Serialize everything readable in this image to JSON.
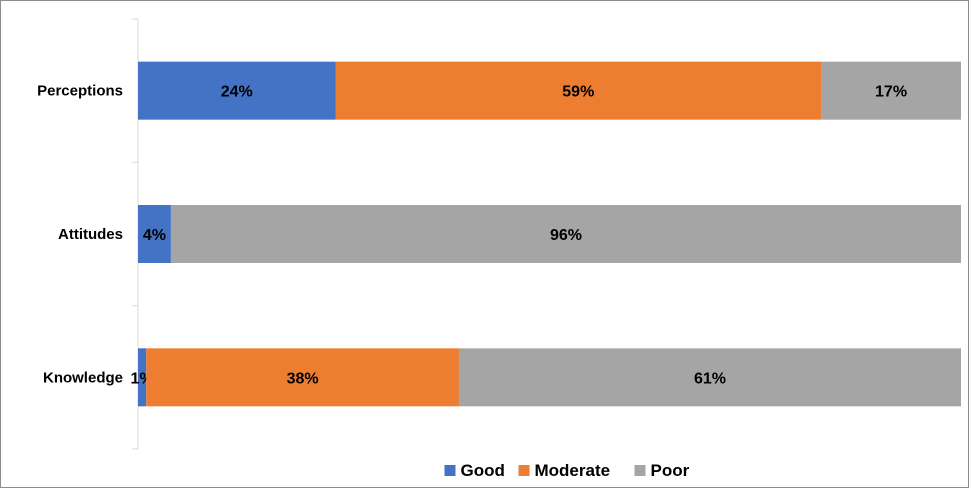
{
  "chart_data": {
    "type": "bar",
    "orientation": "horizontal",
    "stacked": true,
    "percent": true,
    "title": "",
    "xlabel": "",
    "ylabel": "",
    "categories": [
      "Perceptions",
      "Attitudes",
      "Knowledge"
    ],
    "series": [
      {
        "name": "Good",
        "values": [
          24,
          4,
          1
        ],
        "labels": [
          "24%",
          "4%",
          "1%"
        ]
      },
      {
        "name": "Moderate",
        "values": [
          59,
          0,
          38
        ],
        "labels": [
          "59%",
          "",
          "38%"
        ]
      },
      {
        "name": "Poor",
        "values": [
          17,
          96,
          61
        ],
        "labels": [
          "17%",
          "96%",
          "61%"
        ]
      }
    ],
    "xlim": [
      0,
      100
    ],
    "grid": false,
    "legend_position": "bottom",
    "colors": {
      "Good": "#4472c4",
      "Moderate": "#ed7d31",
      "Poor": "#a5a5a5"
    }
  }
}
